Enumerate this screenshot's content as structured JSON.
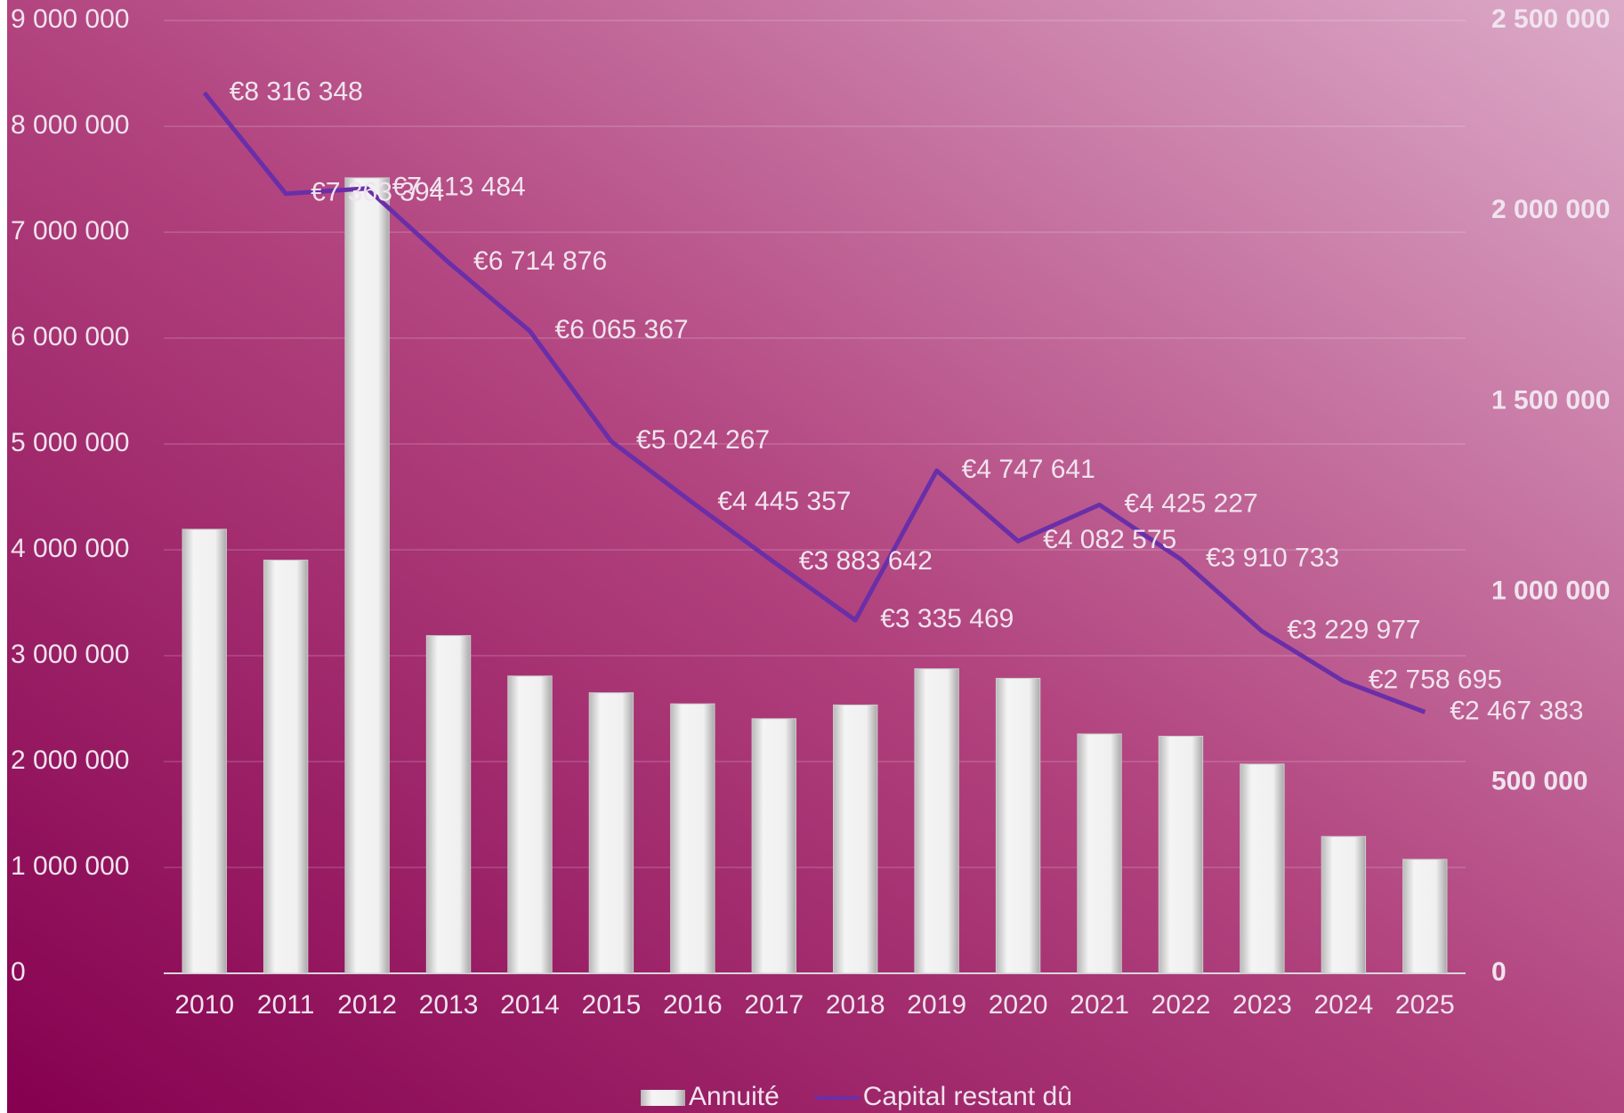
{
  "chart_data": {
    "type": "bar-line",
    "categories": [
      "2010",
      "2011",
      "2012",
      "2013",
      "2014",
      "2015",
      "2016",
      "2017",
      "2018",
      "2019",
      "2020",
      "2021",
      "2022",
      "2023",
      "2024",
      "2025"
    ],
    "series": [
      {
        "name": "Annuité",
        "type": "bar",
        "axis": "y2",
        "color": "#e6e6e6",
        "values": [
          1165000,
          1084000,
          2087000,
          886000,
          780000,
          736000,
          707000,
          668000,
          704000,
          799000,
          774000,
          628000,
          622000,
          549000,
          359000,
          299000
        ]
      },
      {
        "name": "Capital restant dû",
        "type": "line",
        "color": "#6a2fa8",
        "values": [
          8316348,
          7363394,
          7413484,
          6714876,
          6065367,
          5024267,
          4445357,
          3883642,
          3335469,
          4747641,
          4082575,
          4425227,
          3910733,
          3229977,
          2758695,
          2467383
        ],
        "value_labels": [
          "€8 316 348",
          "€7 363 394",
          "€7 413 484",
          "€6 714 876",
          "€6 065 367",
          "€5 024 267",
          "€4 445 357",
          "€3 883 642",
          "€3 335 469",
          "€4 747 641",
          "€4 082 575",
          "€4 425 227",
          "€3 910 733",
          "€3 229 977",
          "€2 758 695",
          "€2 467 383"
        ]
      }
    ],
    "ylim": [
      0,
      9000000
    ],
    "yticks": [
      0,
      {
        "value": 1000000,
        "label": "1 000 000"
      },
      {
        "value": 2000000,
        "label": "2 000 000"
      },
      {
        "value": 3000000,
        "label": "3 000 000"
      },
      {
        "value": 4000000,
        "label": "4 000 000"
      },
      {
        "value": 5000000,
        "label": "5 000 000"
      },
      {
        "value": 6000000,
        "label": "6 000 000"
      },
      {
        "value": 7000000,
        "label": "7 000 000"
      },
      {
        "value": 8000000,
        "label": "8 000 000"
      },
      {
        "value": 9000000,
        "label": "9 000 000"
      }
    ],
    "y2lim": [
      0,
      2500000
    ],
    "y2ticks": [
      0,
      {
        "value": 500000,
        "label": "500 000"
      },
      {
        "value": 1000000,
        "label": "1 000 000"
      },
      {
        "value": 1500000,
        "label": "1 500 000"
      },
      {
        "value": 2000000,
        "label": "2 000 000"
      },
      {
        "value": 2500000,
        "label": "2 500 000"
      }
    ],
    "grid": true,
    "legend": "bottom"
  }
}
